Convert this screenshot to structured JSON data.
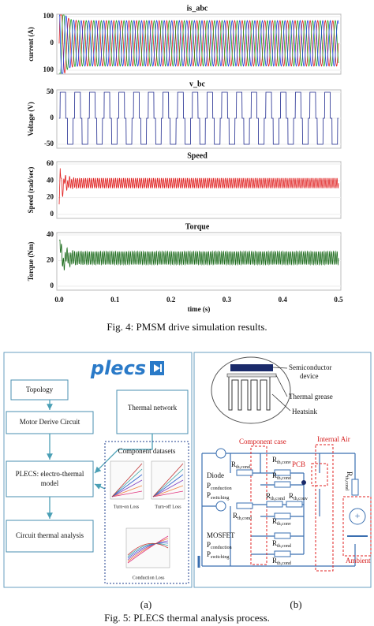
{
  "fig4": {
    "panels": [
      {
        "title": "is_abc",
        "ylabel": "current (A)",
        "yticks": [
          "100",
          "0",
          "100"
        ]
      },
      {
        "title": "v_bc",
        "ylabel": "Voltage (V)",
        "yticks": [
          "50",
          "0",
          "-50"
        ]
      },
      {
        "title": "Speed",
        "ylabel": "Speed (rad/sec)",
        "yticks": [
          "60",
          "40",
          "20",
          "0"
        ]
      },
      {
        "title": "Torque",
        "ylabel": "Torque (Nm)",
        "yticks": [
          "40",
          "20",
          "0"
        ]
      }
    ],
    "xticks": [
      "0.0",
      "0.1",
      "0.2",
      "0.3",
      "0.4",
      "0.5"
    ],
    "xlabel": "time (s)",
    "caption": "Fig. 4: PMSM drive simulation results."
  },
  "fig5": {
    "left": {
      "logo": "plecs",
      "boxes": [
        "Topology",
        "Motor Derive Circuit",
        "Thermal network",
        [
          "PLECS: electro-thermal",
          "model"
        ],
        "Circuit thermal analysis"
      ],
      "datasets": {
        "title": "Component datasets",
        "labels": [
          "Turn-on Loss",
          "Turn-off Loss",
          "Conduction Loss"
        ]
      }
    },
    "right": {
      "heatsink": [
        [
          "Semiconductor",
          "device"
        ],
        "Thermal grease",
        "Heatsink"
      ],
      "regions": [
        "Component case",
        "Internal Air",
        "PCB",
        "Ambient"
      ],
      "diode": "Diode",
      "mosfet": "MOSFET",
      "powers": [
        {
          "base": "P",
          "sub": "conduction"
        },
        {
          "base": "P",
          "sub": "switching"
        },
        {
          "base": "P",
          "sub": "conduction"
        },
        {
          "base": "P",
          "sub": "switching"
        }
      ],
      "resistors": [
        {
          "base": "R",
          "sub": "th,cond"
        },
        {
          "base": "R",
          "sub": "th,conv"
        },
        {
          "base": "R",
          "sub": "th,cond"
        },
        {
          "base": "R",
          "sub": "th,cond"
        },
        {
          "base": "R",
          "sub": "th,conv"
        },
        {
          "base": "R",
          "sub": "th,cond"
        },
        {
          "base": "R",
          "sub": "th,conv"
        },
        {
          "base": "R",
          "sub": "th,cond"
        },
        {
          "base": "R",
          "sub": "th,cond"
        },
        {
          "base": "R",
          "sub": "th,cond"
        }
      ]
    },
    "sublabels": [
      "(a)",
      "(b)"
    ],
    "caption": "Fig. 5: PLECS thermal analysis process."
  }
}
